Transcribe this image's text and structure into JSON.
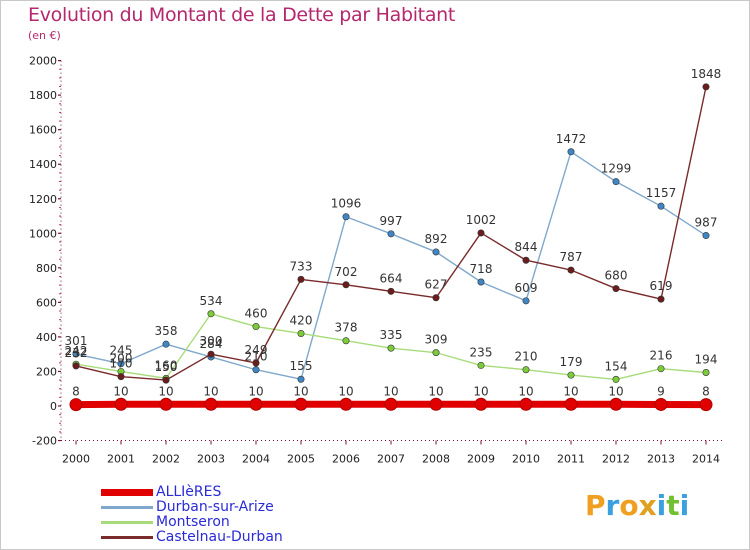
{
  "title": "Evolution du Montant de la Dette par Habitant",
  "unit": "(en €)",
  "logo_text": "Proxiti",
  "chart_data": {
    "type": "line",
    "title": "Evolution du Montant de la Dette par Habitant",
    "subtitle": "(en €)",
    "xlabel": "",
    "ylabel": "",
    "categories": [
      2000,
      2001,
      2002,
      2003,
      2004,
      2005,
      2006,
      2007,
      2008,
      2009,
      2010,
      2011,
      2012,
      2013,
      2014
    ],
    "ylim": [
      -200,
      2000
    ],
    "yticks": [
      -200,
      0,
      200,
      400,
      600,
      800,
      1000,
      1200,
      1400,
      1600,
      1800,
      2000
    ],
    "grid": false,
    "legend_position": "bottom-left",
    "series": [
      {
        "name": "ALLIèRES",
        "color": "#e00000",
        "point_color": "#e00000",
        "values": [
          8,
          10,
          10,
          10,
          10,
          10,
          10,
          10,
          10,
          10,
          10,
          10,
          10,
          9,
          8
        ]
      },
      {
        "name": "Durban-sur-Arize",
        "color": "#7fa8cc",
        "point_color": "#3f86c6",
        "values": [
          301,
          245,
          358,
          284,
          210,
          155,
          1096,
          997,
          892,
          718,
          609,
          1472,
          1299,
          1157,
          987
        ]
      },
      {
        "name": "Montseron",
        "color": "#a8dc7a",
        "point_color": "#7ccc3a",
        "values": [
          242,
          200,
          160,
          534,
          460,
          420,
          378,
          335,
          309,
          235,
          210,
          179,
          154,
          216,
          194
        ]
      },
      {
        "name": "Castelnau-Durban",
        "color": "#7a2a2a",
        "point_color": "#6b1c1c",
        "values": [
          232,
          170,
          150,
          300,
          249,
          733,
          702,
          664,
          627,
          1002,
          844,
          787,
          680,
          619,
          1848
        ]
      }
    ]
  }
}
